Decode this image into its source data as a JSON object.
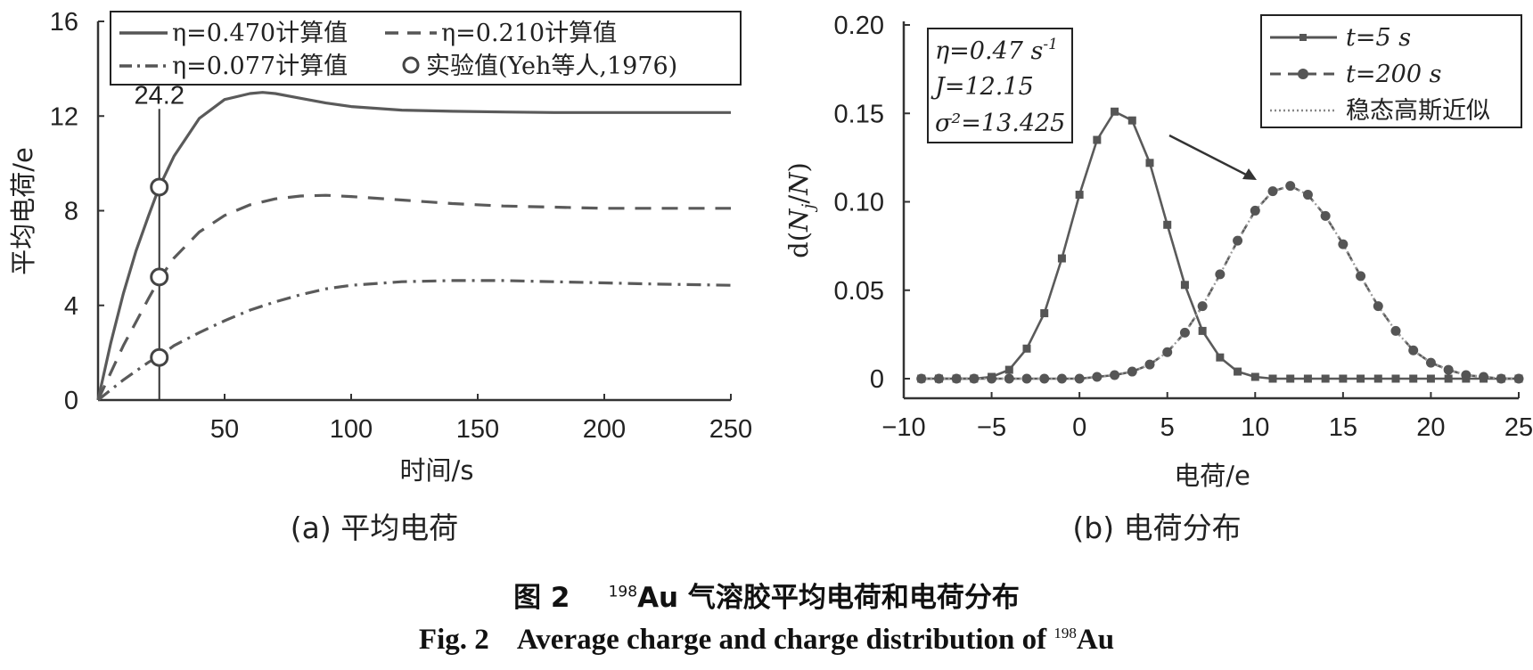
{
  "figure": {
    "caption_cn": {
      "prefix": "图 2",
      "sup": "198",
      "text": "Au 气溶胶平均电荷和电荷分布"
    },
    "caption_en": {
      "prefix": "Fig. 2    Average charge and charge distribution of ",
      "sup": "198",
      "text": "Au"
    }
  },
  "chart_data": [
    {
      "type": "line",
      "panel_label": "(a) 平均电荷",
      "xlabel": "时间/s",
      "ylabel": "平均电荷/e",
      "xlim": [
        0,
        250
      ],
      "ylim": [
        0,
        16
      ],
      "xticks": [
        50,
        100,
        150,
        200,
        250
      ],
      "yticks": [
        0,
        4,
        8,
        12,
        16
      ],
      "grid": false,
      "legend_position": "top",
      "vline": {
        "x": 24.2,
        "label": "24.2"
      },
      "series": [
        {
          "name": "η=0.470计算值",
          "style": "solid",
          "x": [
            0,
            5,
            10,
            15,
            20,
            24.2,
            30,
            40,
            50,
            60,
            65,
            70,
            80,
            90,
            100,
            120,
            140,
            160,
            180,
            200,
            220,
            250
          ],
          "y": [
            0,
            2.4,
            4.5,
            6.3,
            7.8,
            9.0,
            10.3,
            11.9,
            12.7,
            12.95,
            13.0,
            12.95,
            12.75,
            12.55,
            12.4,
            12.25,
            12.2,
            12.17,
            12.15,
            12.15,
            12.15,
            12.15
          ]
        },
        {
          "name": "η=0.210计算值",
          "style": "dashed",
          "x": [
            0,
            10,
            20,
            24.2,
            30,
            40,
            50,
            60,
            70,
            80,
            90,
            100,
            120,
            140,
            160,
            180,
            200,
            220,
            250
          ],
          "y": [
            0,
            2.3,
            4.3,
            5.1,
            6.0,
            7.1,
            7.8,
            8.25,
            8.5,
            8.62,
            8.65,
            8.6,
            8.45,
            8.3,
            8.2,
            8.15,
            8.1,
            8.1,
            8.1
          ]
        },
        {
          "name": "η=0.077计算值",
          "style": "dashdot",
          "x": [
            0,
            10,
            20,
            24.2,
            30,
            40,
            50,
            60,
            70,
            80,
            90,
            100,
            120,
            140,
            160,
            180,
            200,
            220,
            250
          ],
          "y": [
            0,
            0.85,
            1.6,
            1.85,
            2.3,
            2.85,
            3.35,
            3.8,
            4.15,
            4.45,
            4.7,
            4.85,
            5.0,
            5.05,
            5.05,
            5.0,
            4.95,
            4.9,
            4.85
          ]
        }
      ],
      "experiment": {
        "name": "实验值(Yeh等人,1976)",
        "x": [
          24.2,
          24.2,
          24.2
        ],
        "y": [
          9.0,
          5.2,
          1.8
        ]
      }
    },
    {
      "type": "line",
      "panel_label": "(b) 电荷分布",
      "xlabel": "电荷/e",
      "ylabel": "d(Nj/N)",
      "xlim": [
        -10,
        25
      ],
      "ylim": [
        0,
        0.2
      ],
      "xticks": [
        -10,
        -5,
        0,
        5,
        10,
        15,
        20,
        25
      ],
      "xtick_labels": [
        "−10",
        "−5",
        "0",
        "5",
        "10",
        "15",
        "20",
        "25"
      ],
      "yticks": [
        0,
        0.05,
        0.1,
        0.15,
        0.2
      ],
      "ytick_labels": [
        "0",
        "0.05",
        "0.10",
        "0.15",
        "0.20"
      ],
      "grid": false,
      "legend_position": "top-right",
      "annotation": {
        "eta": "η=0.47 s",
        "eta_exp": "-1",
        "J": "J=12.15",
        "sigma": "σ²=13.425"
      },
      "series": [
        {
          "name": "t=5 s",
          "style": "solid-square",
          "x": [
            -9,
            -8,
            -7,
            -6,
            -5,
            -4,
            -3,
            -2,
            -1,
            0,
            1,
            2,
            3,
            4,
            5,
            6,
            7,
            8,
            9,
            10,
            11,
            12,
            13,
            14,
            15,
            16,
            17,
            18,
            19,
            20,
            21,
            22,
            23,
            24,
            25
          ],
          "y": [
            0,
            0,
            0,
            0,
            0.001,
            0.005,
            0.017,
            0.037,
            0.068,
            0.104,
            0.135,
            0.151,
            0.146,
            0.122,
            0.087,
            0.053,
            0.027,
            0.012,
            0.004,
            0.001,
            0,
            0,
            0,
            0,
            0,
            0,
            0,
            0,
            0,
            0,
            0,
            0,
            0,
            0,
            0
          ]
        },
        {
          "name": "t=200 s",
          "style": "dashed-circle",
          "x": [
            -9,
            -8,
            -7,
            -6,
            -5,
            -4,
            -3,
            -2,
            -1,
            0,
            1,
            2,
            3,
            4,
            5,
            6,
            7,
            8,
            9,
            10,
            11,
            12,
            13,
            14,
            15,
            16,
            17,
            18,
            19,
            20,
            21,
            22,
            23,
            24,
            25
          ],
          "y": [
            0,
            0,
            0,
            0,
            0,
            0,
            0,
            0,
            0,
            0,
            0.001,
            0.002,
            0.004,
            0.008,
            0.015,
            0.026,
            0.041,
            0.059,
            0.078,
            0.095,
            0.106,
            0.109,
            0.104,
            0.092,
            0.076,
            0.058,
            0.041,
            0.027,
            0.016,
            0.009,
            0.005,
            0.002,
            0.001,
            0,
            0
          ]
        },
        {
          "name": "稳态高斯近似",
          "style": "dotted",
          "x": [
            -9,
            -8,
            -7,
            -6,
            -5,
            -4,
            -3,
            -2,
            -1,
            0,
            1,
            2,
            3,
            4,
            5,
            6,
            7,
            8,
            9,
            10,
            11,
            12,
            13,
            14,
            15,
            16,
            17,
            18,
            19,
            20,
            21,
            22,
            23,
            24,
            25
          ],
          "y": [
            0,
            0,
            0,
            0,
            0,
            0,
            0,
            0,
            0,
            0,
            0.001,
            0.002,
            0.004,
            0.008,
            0.015,
            0.026,
            0.041,
            0.059,
            0.078,
            0.095,
            0.106,
            0.109,
            0.104,
            0.092,
            0.076,
            0.058,
            0.041,
            0.027,
            0.016,
            0.009,
            0.005,
            0.002,
            0.001,
            0,
            0
          ]
        }
      ]
    }
  ]
}
